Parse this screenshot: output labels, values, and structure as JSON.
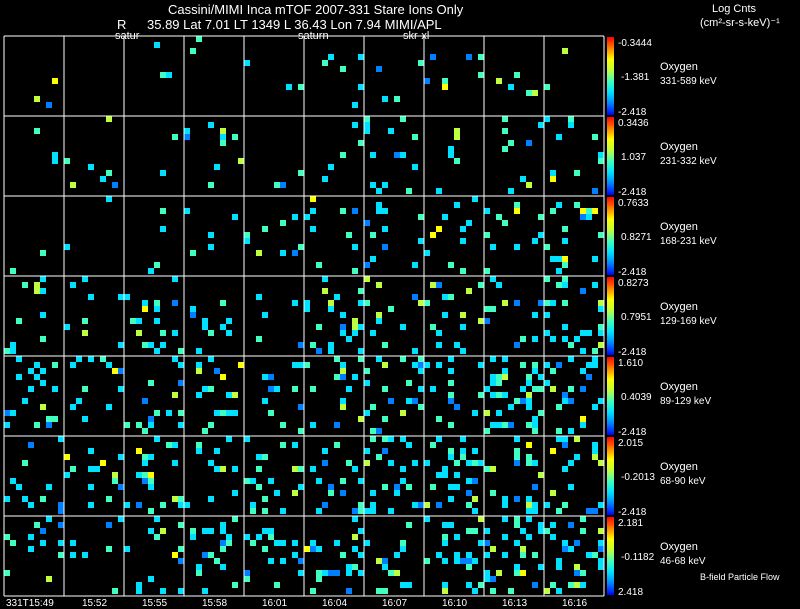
{
  "header": {
    "line1": "Cassini/MIMI Inca mTOF  2007-331   Stare    Ions Only",
    "line2_r": "R",
    "line2_values": "35.89 Lat 7.01 LT 1349 L         36.43 Lon         7.94  MIMI/APL",
    "overlay_labels": [
      "satur",
      "saturn",
      "skr-xl"
    ]
  },
  "units": {
    "line1": "Log Cnts",
    "line2": "(cm²-sr-s-keV)⁻¹"
  },
  "footer": {
    "flow_label": "B-field Particle Flow",
    "time_labels": [
      "331T15:49",
      "15:52",
      "15:55",
      "15:58",
      "16:01",
      "16:04",
      "16:07",
      "16:10",
      "16:13",
      "16:16"
    ]
  },
  "colors": {
    "background": "#000000",
    "grid": "#ffffff",
    "colormap": [
      "#0000ff",
      "#0080ff",
      "#00e0ff",
      "#40ffc0",
      "#c0ff40",
      "#ffff00",
      "#ff8000",
      "#ff0000"
    ]
  },
  "chart_data": {
    "type": "heatmap",
    "columns": 10,
    "rows": [
      {
        "species": "Oxygen",
        "energy": "331-589 keV",
        "cmax": "-0.3444",
        "cmid": "-1.381",
        "cmin": "-2.418",
        "density": 0.03
      },
      {
        "species": "Oxygen",
        "energy": "231-332 keV",
        "cmax": "0.3436",
        "cmid": "1.037",
        "cmin": "-2.418",
        "density": 0.05
      },
      {
        "species": "Oxygen",
        "energy": "168-231 keV",
        "cmax": "0.7633",
        "cmid": "0.8271",
        "cmin": "-2.418",
        "density": 0.07
      },
      {
        "species": "Oxygen",
        "energy": "129-169 keV",
        "cmax": "0.8273",
        "cmid": "0.7951",
        "cmin": "-2.418",
        "density": 0.1
      },
      {
        "species": "Oxygen",
        "energy": "89-129 keV",
        "cmax": "1.610",
        "cmid": "0.4039",
        "cmin": "-2.418",
        "density": 0.16
      },
      {
        "species": "Oxygen",
        "energy": "68-90 keV",
        "cmax": "2.015",
        "cmid": "-0.2013",
        "cmin": "-2.418",
        "density": 0.14
      },
      {
        "species": "Oxygen",
        "energy": "46-68 keV",
        "cmax": "2.181",
        "cmid": "-0.1182",
        "cmin": "2.418",
        "density": 0.15
      }
    ],
    "column_density_weight": [
      0.6,
      0.7,
      0.7,
      0.8,
      0.9,
      1.0,
      1.1,
      1.2,
      1.3,
      1.4
    ]
  }
}
